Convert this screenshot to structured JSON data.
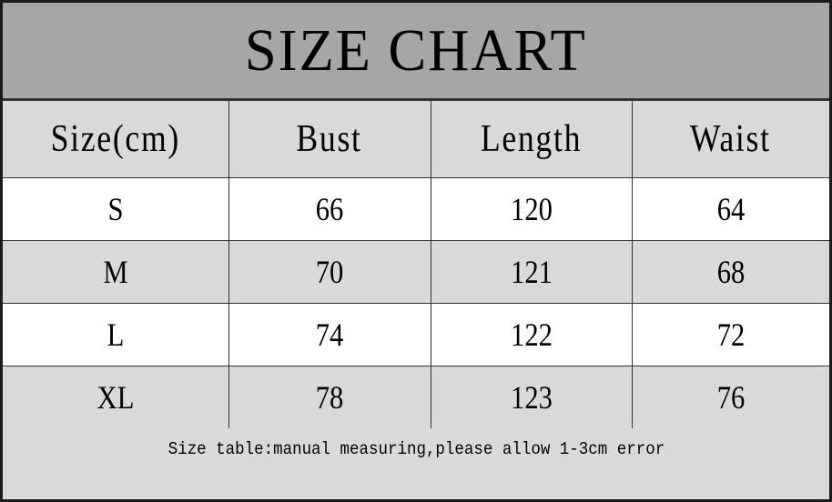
{
  "title": "SIZE CHART",
  "headers": [
    "Size(cm)",
    "Bust",
    "Length",
    "Waist"
  ],
  "rows": [
    [
      "S",
      "66",
      "120",
      "64"
    ],
    [
      "M",
      "70",
      "121",
      "68"
    ],
    [
      "L",
      "74",
      "122",
      "72"
    ],
    [
      "XL",
      "78",
      "123",
      "76"
    ]
  ],
  "footnote": "Size table:manual measuring,please allow 1-3cm error",
  "colors": {
    "title_bg": "#a6a6a6",
    "gray_row": "#d9d9d9",
    "white_row": "#ffffff",
    "border": "#333333"
  }
}
